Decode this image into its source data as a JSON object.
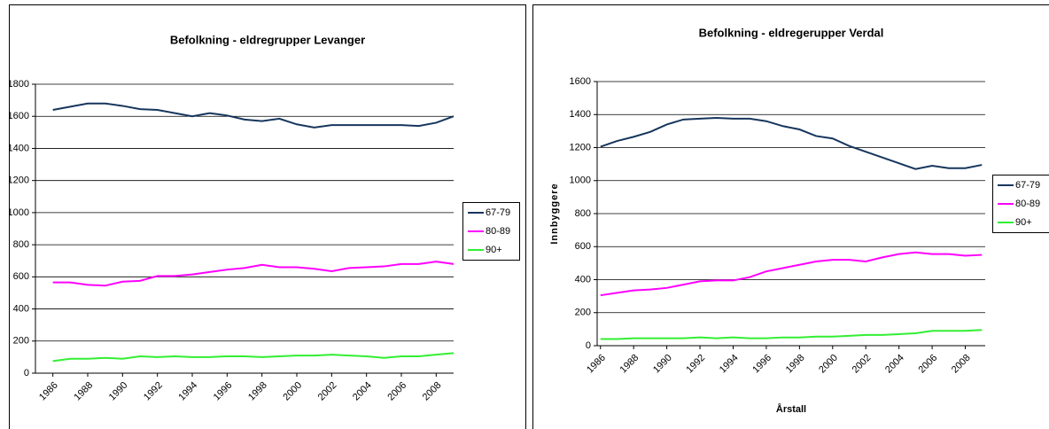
{
  "chart_data": [
    {
      "type": "line",
      "title": "Befolkning - eldregrupper Levanger",
      "x": [
        1986,
        1987,
        1988,
        1989,
        1990,
        1991,
        1992,
        1993,
        1994,
        1995,
        1996,
        1997,
        1998,
        1999,
        2000,
        2001,
        2002,
        2003,
        2004,
        2005,
        2006,
        2007,
        2008,
        2009
      ],
      "xlim": [
        1985,
        2009
      ],
      "xticks": [
        1986,
        1988,
        1990,
        1992,
        1994,
        1996,
        1998,
        2000,
        2002,
        2004,
        2006,
        2008
      ],
      "ylim": [
        0,
        1800
      ],
      "yticks": [
        0,
        200,
        400,
        600,
        800,
        1000,
        1200,
        1400,
        1600,
        1800
      ],
      "grid": true,
      "legend": "right",
      "series": [
        {
          "name": "67-79",
          "color": "#17365d",
          "values": [
            1640,
            1660,
            1680,
            1680,
            1665,
            1645,
            1640,
            1620,
            1600,
            1620,
            1605,
            1580,
            1570,
            1585,
            1550,
            1530,
            1545,
            1545,
            1545,
            1545,
            1545,
            1540,
            1560,
            1600
          ]
        },
        {
          "name": "80-89",
          "color": "#ff00ff",
          "values": [
            565,
            565,
            550,
            545,
            570,
            575,
            605,
            605,
            615,
            630,
            645,
            655,
            675,
            660,
            660,
            650,
            635,
            655,
            660,
            665,
            680,
            680,
            695,
            680
          ]
        },
        {
          "name": "90+",
          "color": "#33ee33",
          "values": [
            75,
            90,
            90,
            95,
            90,
            105,
            100,
            105,
            100,
            100,
            105,
            105,
            100,
            105,
            110,
            110,
            115,
            110,
            105,
            95,
            105,
            105,
            115,
            125
          ]
        }
      ]
    },
    {
      "type": "line",
      "title": "Befolkning - eldregerupper Verdal",
      "x_label": "Årstall",
      "y_label": "Innbyggere",
      "x": [
        1986,
        1987,
        1988,
        1989,
        1990,
        1991,
        1992,
        1993,
        1994,
        1995,
        1996,
        1997,
        1998,
        1999,
        2000,
        2001,
        2002,
        2003,
        2004,
        2005,
        2006,
        2007,
        2008,
        2009
      ],
      "xlim": [
        1985.8,
        2009.2
      ],
      "xticks": [
        1986,
        1988,
        1990,
        1992,
        1994,
        1996,
        1998,
        2000,
        2002,
        2004,
        2006,
        2008
      ],
      "ylim": [
        0,
        1600
      ],
      "yticks": [
        0,
        200,
        400,
        600,
        800,
        1000,
        1200,
        1400,
        1600
      ],
      "grid": true,
      "legend": "right",
      "series": [
        {
          "name": "67-79",
          "color": "#17365d",
          "values": [
            1205,
            1240,
            1265,
            1295,
            1340,
            1370,
            1375,
            1380,
            1375,
            1375,
            1360,
            1330,
            1310,
            1270,
            1255,
            1210,
            1175,
            1140,
            1105,
            1070,
            1090,
            1075,
            1075,
            1095
          ]
        },
        {
          "name": "80-89",
          "color": "#ff00ff",
          "values": [
            305,
            320,
            335,
            340,
            350,
            370,
            390,
            395,
            395,
            415,
            450,
            470,
            490,
            510,
            520,
            520,
            510,
            535,
            555,
            565,
            555,
            555,
            545,
            550
          ]
        },
        {
          "name": "90+",
          "color": "#33ee33",
          "values": [
            40,
            40,
            45,
            45,
            45,
            45,
            50,
            45,
            50,
            45,
            45,
            50,
            50,
            55,
            55,
            60,
            65,
            65,
            70,
            75,
            90,
            90,
            90,
            95
          ]
        }
      ]
    }
  ]
}
